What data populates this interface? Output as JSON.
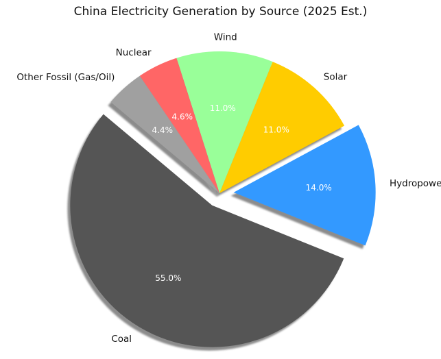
{
  "chart_data": {
    "type": "pie",
    "title": "China Electricity Generation by Source (2025 Est.)",
    "categories": [
      "Coal",
      "Hydropower",
      "Solar",
      "Wind",
      "Nuclear",
      "Other Fossil (Gas/Oil)"
    ],
    "values": [
      55.0,
      14.0,
      11.0,
      11.0,
      4.6,
      4.4
    ],
    "percent_labels": [
      "55.0%",
      "14.0%",
      "11.0%",
      "11.0%",
      "4.6%",
      "4.4%"
    ],
    "colors": [
      "#555555",
      "#3399ff",
      "#ffcc00",
      "#99ff99",
      "#ff6666",
      "#a0a0a0"
    ],
    "exploded": [
      "Coal",
      "Hydropower"
    ],
    "start_angle_deg": 140,
    "direction": "counterclockwise",
    "shadow": true,
    "legend": "none"
  }
}
